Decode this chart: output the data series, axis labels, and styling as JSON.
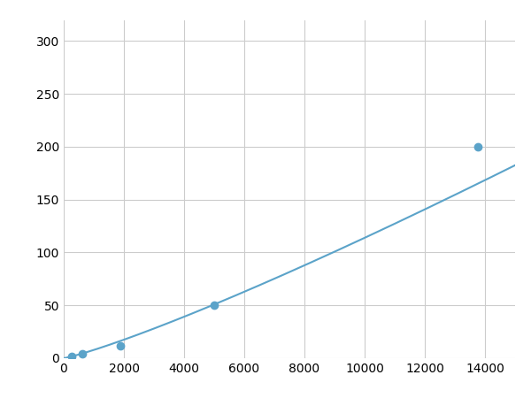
{
  "x_points": [
    250,
    625,
    1875,
    5000,
    13750
  ],
  "y_points": [
    2,
    4,
    12,
    50,
    200
  ],
  "line_color": "#5ba3c9",
  "marker_color": "#5ba3c9",
  "marker_size": 6,
  "line_width": 1.5,
  "xlim": [
    0,
    15000
  ],
  "ylim": [
    0,
    320
  ],
  "xticks": [
    0,
    2000,
    4000,
    6000,
    8000,
    10000,
    12000,
    14000
  ],
  "yticks": [
    0,
    50,
    100,
    150,
    200,
    250,
    300
  ],
  "grid_color": "#cccccc",
  "background_color": "#ffffff",
  "tick_fontsize": 10,
  "figsize": [
    6.0,
    4.5
  ],
  "dpi": 100
}
